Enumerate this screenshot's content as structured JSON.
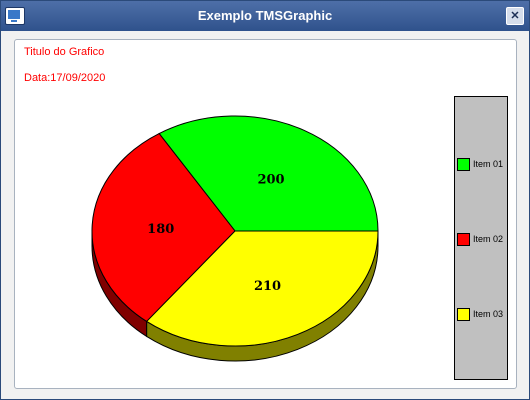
{
  "window": {
    "title": "Exemplo TMSGraphic",
    "close_glyph": "✕"
  },
  "chart_data": {
    "type": "pie",
    "title": "Titulo do Grafico",
    "subtitle": "Data:17/09/2020",
    "legend": "right",
    "slices": [
      {
        "label": "Item 01",
        "value": 200,
        "color": "#00ff00",
        "dark": "#007f00"
      },
      {
        "label": "Item 02",
        "value": 180,
        "color": "#ff0000",
        "dark": "#800000"
      },
      {
        "label": "Item 03",
        "value": 210,
        "color": "#ffff00",
        "dark": "#808000"
      }
    ]
  }
}
